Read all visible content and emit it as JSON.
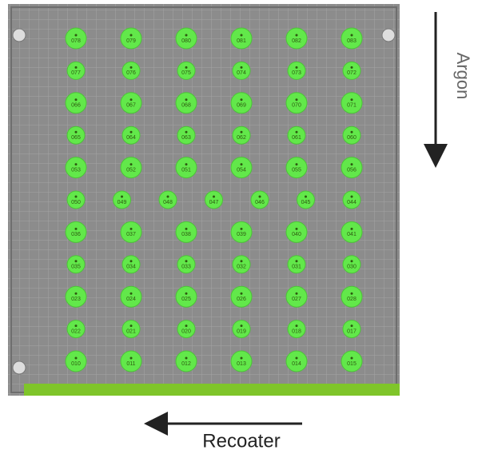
{
  "plate": {
    "rows": [
      [
        "078",
        "079",
        "080",
        "081",
        "082",
        "083"
      ],
      [
        "077",
        "076",
        "075",
        "074",
        "073",
        "072"
      ],
      [
        "066",
        "067",
        "068",
        "069",
        "070",
        "071"
      ],
      [
        "065",
        "064",
        "063",
        "062",
        "061",
        "060"
      ],
      [
        "053",
        "052",
        "051",
        "054",
        "055",
        "056"
      ],
      [
        "050",
        "049",
        "048",
        "047",
        "046",
        "045",
        "044"
      ],
      [
        "036",
        "037",
        "038",
        "039",
        "040",
        "041"
      ],
      [
        "035",
        "034",
        "033",
        "032",
        "031",
        "030"
      ],
      [
        "023",
        "024",
        "025",
        "026",
        "027",
        "028"
      ],
      [
        "022",
        "021",
        "020",
        "019",
        "018",
        "017"
      ],
      [
        "010",
        "011",
        "012",
        "013",
        "014",
        "015"
      ]
    ]
  },
  "labels": {
    "recoater": "Recoater",
    "gas": "Argon"
  }
}
